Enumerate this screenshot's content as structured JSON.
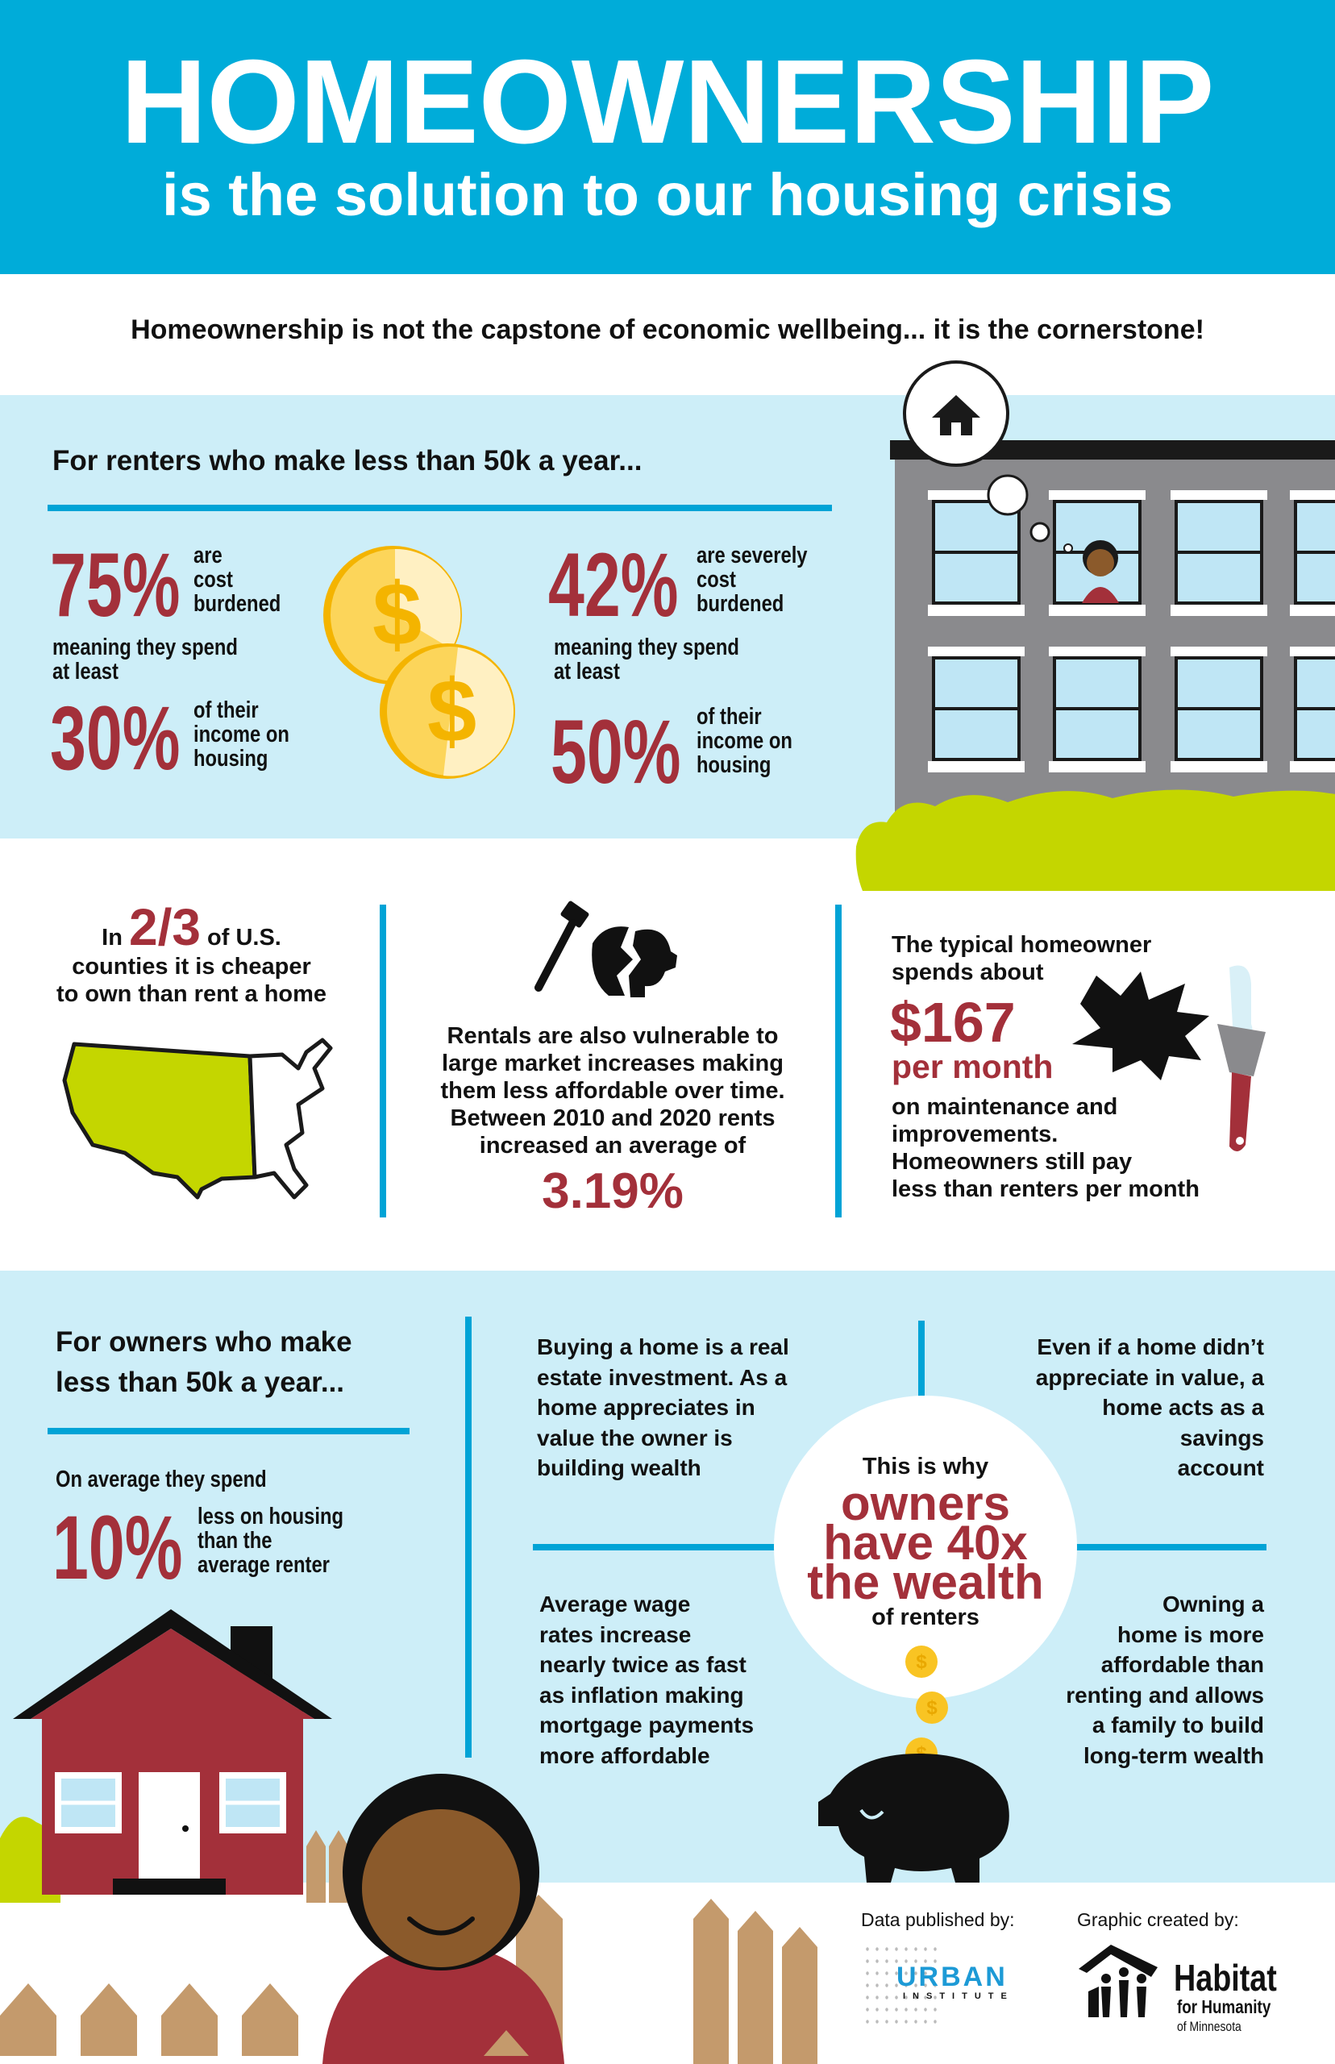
{
  "header": {
    "title": "HOMEOWNERSHIP",
    "subtitle": "is the solution to our housing crisis"
  },
  "tagline": "Homeownership is not the capstone of economic wellbeing... it is the cornerstone!",
  "renters": {
    "heading": "For renters who make less than 50k a year...",
    "left": {
      "pct": "75%",
      "desc": [
        "are",
        "cost",
        "burdened"
      ],
      "middle": [
        "meaning they spend",
        "at least"
      ],
      "pct2": "30%",
      "desc2": [
        "of their",
        "income on",
        "housing"
      ]
    },
    "right": {
      "pct": "42%",
      "desc": [
        "are severely",
        "cost",
        "burdened"
      ],
      "middle": [
        "meaning they spend",
        "at least"
      ],
      "pct2": "50%",
      "desc2": [
        "of their",
        "income on",
        "housing"
      ]
    }
  },
  "facts": {
    "cheaper": {
      "pre": "In",
      "fraction": "2/3",
      "post": "of U.S.",
      "lines": [
        "counties it is cheaper",
        "to own than rent a home"
      ]
    },
    "rentals": {
      "lines": [
        "Rentals are also vulnerable to",
        "large market increases making",
        "them less affordable over time.",
        "Between 2010 and 2020 rents",
        "increased an average of"
      ],
      "value": "3.19%"
    },
    "maintenance": {
      "intro": [
        "The typical homeowner",
        "spends about"
      ],
      "amount": "$167",
      "unit": "per month",
      "lines": [
        "on maintenance and",
        "improvements.",
        "Homeowners still pay",
        "less than renters per month"
      ]
    }
  },
  "owners": {
    "heading": [
      "For owners who make",
      "less than 50k a year..."
    ],
    "intro": "On average they spend",
    "pct": "10%",
    "desc": [
      "less on housing",
      "than the",
      "average renter"
    ],
    "investment": [
      "Buying a home is a real",
      "estate investment. As a",
      "home appreciates in",
      "value the owner is",
      "building wealth"
    ],
    "savings": [
      "Even if a home didn’t",
      "appreciate in value, a",
      "home acts as a",
      "savings",
      "account"
    ],
    "wages": [
      "Average wage",
      "rates increase",
      "nearly twice as fast",
      "as inflation making",
      "mortgage payments",
      "more affordable"
    ],
    "affordable": [
      "Owning a",
      "home is more",
      "affordable than",
      "renting and allows",
      "a family to build",
      "long-term wealth"
    ],
    "center": {
      "pre": "This is why",
      "emph": [
        "owners",
        "have 40x",
        "the wealth"
      ],
      "post": "of renters"
    }
  },
  "footer": {
    "data_label": "Data published by:",
    "graphic_label": "Graphic created by:",
    "urban": "URBAN",
    "institute": "INSTITUTE",
    "habitat": "Habitat",
    "humanity": "for Humanity",
    "minnesota": "of Minnesota"
  },
  "colors": {
    "header_blue": "#00acd9",
    "light_blue": "#cdeef8",
    "accent_red": "#a3303a",
    "line_blue": "#00a3d6",
    "grass_green": "#c4d600",
    "coin_gold": "#f9c423"
  }
}
